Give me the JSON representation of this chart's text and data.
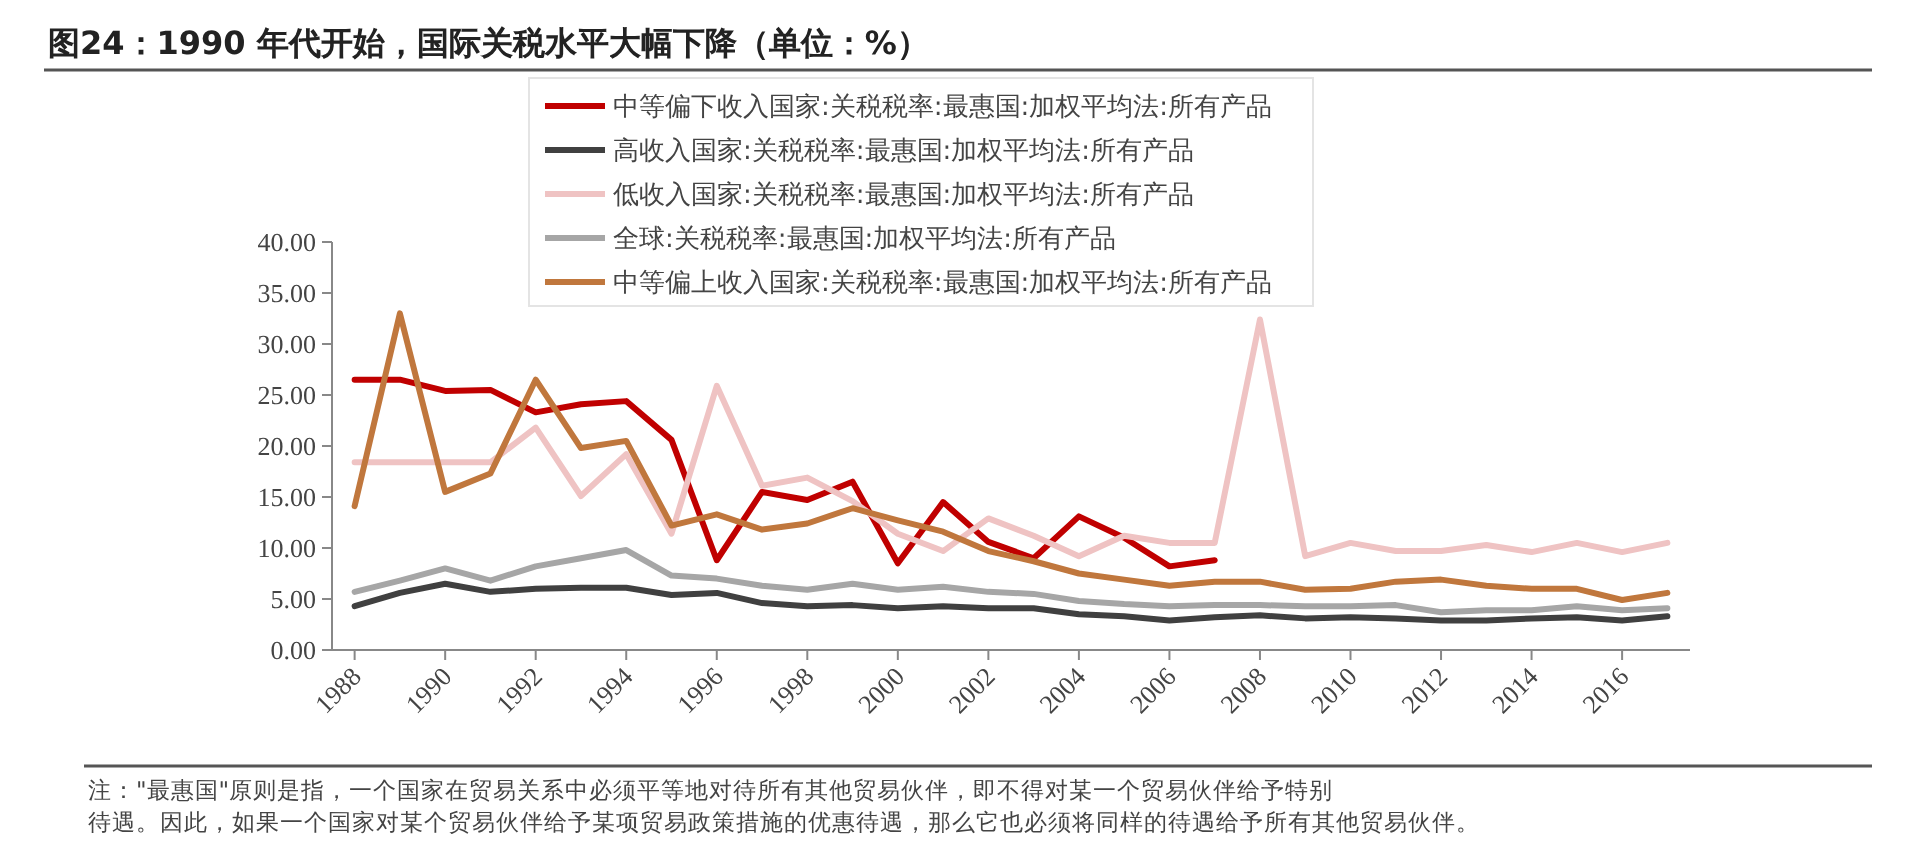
{
  "chart_data": {
    "type": "line",
    "title": "图24：1990 年代开始，国际关税水平大幅下降（单位：%）",
    "categories": [
      "1988",
      null,
      "1990",
      null,
      "1992",
      null,
      "1994",
      null,
      "1996",
      null,
      "1998",
      null,
      "2000",
      null,
      "2002",
      null,
      "2004",
      null,
      "2006",
      null,
      "2008",
      null,
      "2010",
      null,
      "2012",
      null,
      "2014",
      null,
      "2016",
      null
    ],
    "series": [
      {
        "name": "中等偏下收入国家:关税税率:最惠国:加权平均法:所有产品",
        "color": "#c00000",
        "values": [
          26.5,
          26.5,
          25.4,
          25.5,
          23.3,
          24.1,
          24.4,
          20.6,
          8.8,
          15.5,
          14.7,
          16.5,
          8.5,
          14.5,
          10.6,
          9.0,
          13.1,
          11.0,
          8.2,
          8.8,
          null,
          null,
          null,
          null,
          null,
          null,
          null,
          null,
          null,
          null
        ]
      },
      {
        "name": "高收入国家:关税税率:最惠国:加权平均法:所有产品",
        "color": "#404040",
        "values": [
          4.3,
          5.6,
          6.5,
          5.7,
          6.0,
          6.1,
          6.1,
          5.4,
          5.6,
          4.6,
          4.3,
          4.4,
          4.1,
          4.3,
          4.1,
          4.1,
          3.5,
          3.3,
          2.9,
          3.2,
          3.4,
          3.1,
          3.2,
          3.1,
          2.9,
          2.9,
          3.1,
          3.2,
          2.9,
          3.3
        ]
      },
      {
        "name": "低收入国家:关税税率:最惠国:加权平均法:所有产品",
        "color": "#efc3c3",
        "values": [
          18.4,
          18.4,
          18.4,
          18.4,
          21.8,
          15.1,
          19.2,
          11.4,
          25.9,
          16.1,
          16.9,
          14.6,
          11.4,
          9.7,
          12.9,
          11.2,
          9.2,
          11.2,
          10.5,
          10.5,
          32.4,
          9.2,
          10.5,
          9.7,
          9.7,
          10.3,
          9.6,
          10.5,
          9.6,
          10.5
        ]
      },
      {
        "name": "全球:关税税率:最惠国:加权平均法:所有产品",
        "color": "#a6a6a6",
        "values": [
          5.7,
          6.8,
          8.0,
          6.8,
          8.2,
          9.0,
          9.8,
          7.3,
          7.0,
          6.3,
          5.9,
          6.5,
          5.9,
          6.2,
          5.7,
          5.5,
          4.8,
          4.5,
          4.3,
          4.4,
          4.4,
          4.3,
          4.3,
          4.4,
          3.7,
          3.9,
          3.9,
          4.3,
          3.9,
          4.1
        ]
      },
      {
        "name": "中等偏上收入国家:关税税率:最惠国:加权平均法:所有产品",
        "color": "#c0773d",
        "values": [
          14.1,
          33.0,
          15.5,
          17.3,
          26.5,
          19.8,
          20.5,
          12.2,
          13.3,
          11.8,
          12.4,
          13.9,
          12.7,
          11.6,
          9.7,
          8.7,
          7.5,
          6.9,
          6.3,
          6.7,
          6.7,
          5.9,
          6.0,
          6.7,
          6.9,
          6.3,
          6.0,
          6.0,
          4.9,
          5.6
        ]
      }
    ],
    "ylim": [
      0,
      40
    ],
    "yticks": [
      {
        "value": 0,
        "label": "0.00"
      },
      {
        "value": 5,
        "label": "5.00"
      },
      {
        "value": 10,
        "label": "10.00"
      },
      {
        "value": 15,
        "label": "15.00"
      },
      {
        "value": 20,
        "label": "20.00"
      },
      {
        "value": 25,
        "label": "25.00"
      },
      {
        "value": 30,
        "label": "30.00"
      },
      {
        "value": 35,
        "label": "35.00"
      },
      {
        "value": 40,
        "label": "40.00"
      }
    ],
    "grid": false,
    "legend": "top",
    "marker": "none",
    "line_style": "solid",
    "annotations": [
      "注：\"最惠国\"原则是指，一个国家在贸易关系中必须平等地对待所有其他贸易伙伴，即不得对某一个贸易伙伴给予特别",
      "待遇。因此，如果一个国家对某个贸易伙伴给予某项贸易政策措施的优惠待遇，那么它也必须将同样的待遇给予所有其他贸易伙伴。"
    ]
  }
}
